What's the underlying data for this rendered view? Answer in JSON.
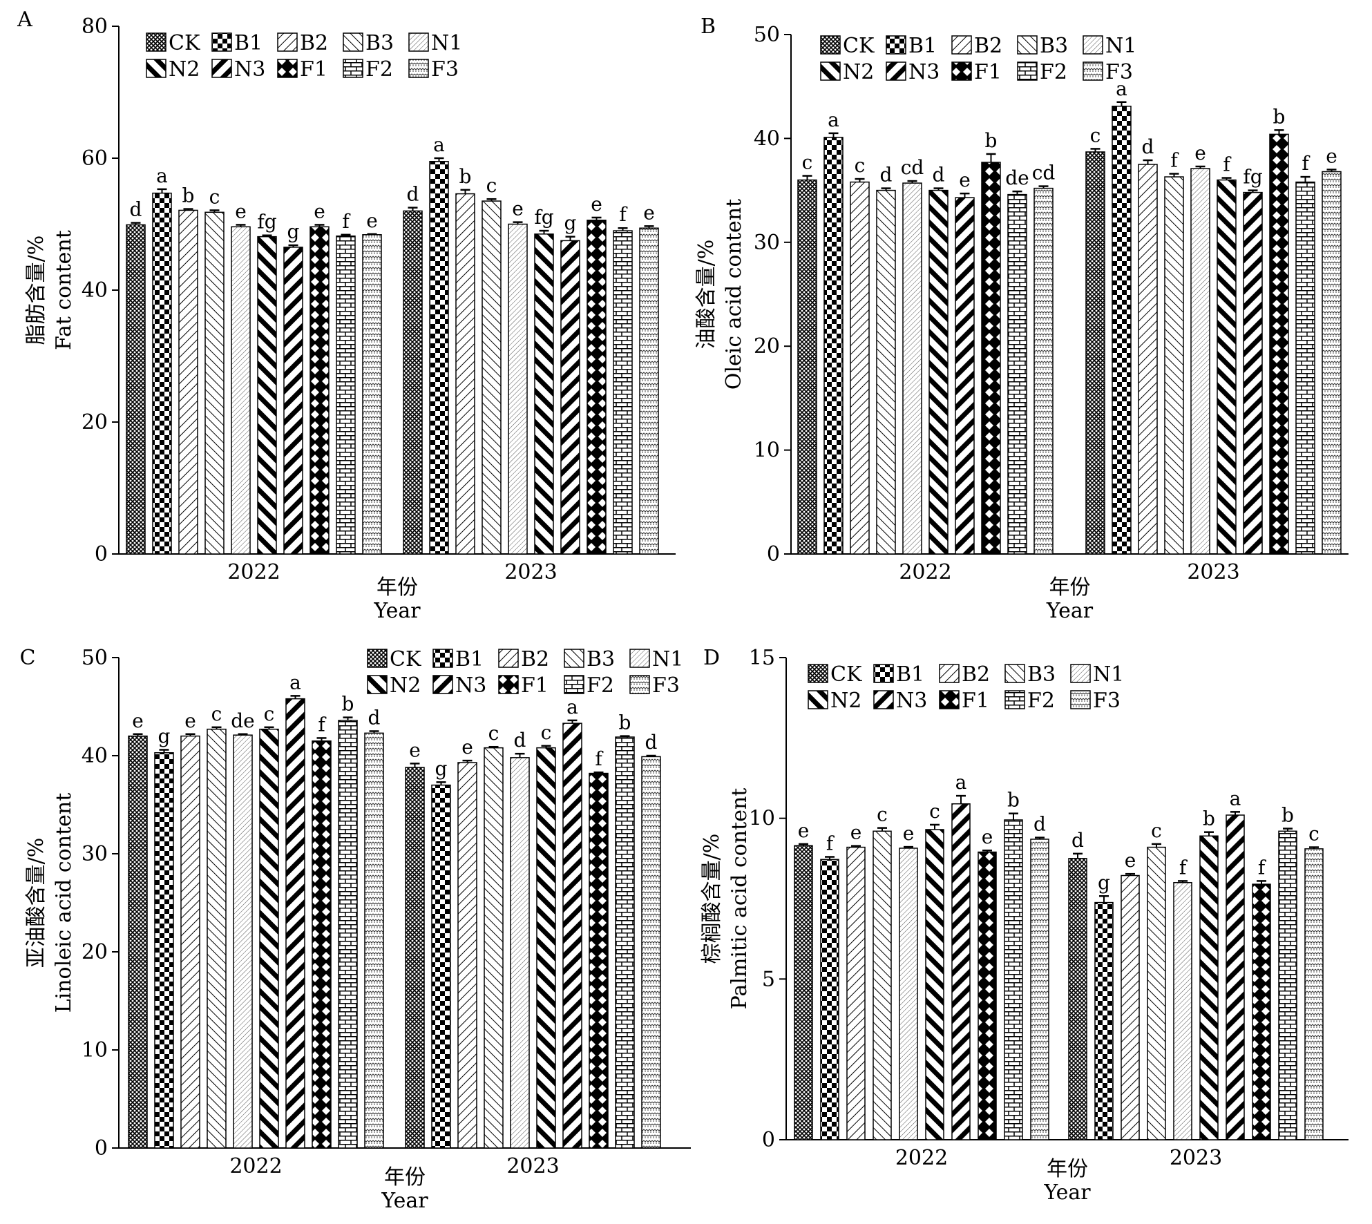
{
  "treatments": [
    "CK",
    "B1",
    "B2",
    "B3",
    "N1",
    "N2",
    "N3",
    "F1",
    "F2",
    "F3"
  ],
  "chart_data": [
    {
      "panel": "A",
      "type": "bar",
      "ylabel_cn": "脂肪含量/%",
      "ylabel_en": "Fat content",
      "xlabel_cn": "年份",
      "xlabel_en": "Year",
      "ylim": [
        0,
        80
      ],
      "yticks": [
        0,
        20,
        40,
        60,
        80
      ],
      "categories": [
        "2022",
        "2023"
      ],
      "series": [
        {
          "name": "CK",
          "values": [
            49.9,
            52.0
          ],
          "errors": [
            0.3,
            0.5
          ],
          "letters": [
            "d",
            "d"
          ]
        },
        {
          "name": "B1",
          "values": [
            54.7,
            59.5
          ],
          "errors": [
            0.6,
            0.5
          ],
          "letters": [
            "a",
            "a"
          ]
        },
        {
          "name": "B2",
          "values": [
            52.1,
            54.6
          ],
          "errors": [
            0.2,
            0.6
          ],
          "letters": [
            "b",
            "b"
          ]
        },
        {
          "name": "B3",
          "values": [
            51.8,
            53.5
          ],
          "errors": [
            0.3,
            0.3
          ],
          "letters": [
            "c",
            "c"
          ]
        },
        {
          "name": "N1",
          "values": [
            49.6,
            50.0
          ],
          "errors": [
            0.3,
            0.3
          ],
          "letters": [
            "e",
            "e"
          ]
        },
        {
          "name": "N2",
          "values": [
            48.1,
            48.5
          ],
          "errors": [
            0.2,
            0.5
          ],
          "letters": [
            "fg",
            "fg"
          ]
        },
        {
          "name": "N3",
          "values": [
            46.5,
            47.5
          ],
          "errors": [
            0.3,
            0.6
          ],
          "letters": [
            "g",
            "g"
          ]
        },
        {
          "name": "F1",
          "values": [
            49.6,
            50.6
          ],
          "errors": [
            0.3,
            0.4
          ],
          "letters": [
            "e",
            "e"
          ]
        },
        {
          "name": "F2",
          "values": [
            48.2,
            49.0
          ],
          "errors": [
            0.2,
            0.4
          ],
          "letters": [
            "f",
            "f"
          ]
        },
        {
          "name": "F3",
          "values": [
            48.4,
            49.4
          ],
          "errors": [
            0.1,
            0.3
          ],
          "letters": [
            "e",
            "e"
          ]
        }
      ]
    },
    {
      "panel": "B",
      "type": "bar",
      "ylabel_cn": "油酸含量/%",
      "ylabel_en": "Oleic acid content",
      "xlabel_cn": "年份",
      "xlabel_en": "Year",
      "ylim": [
        0,
        50
      ],
      "yticks": [
        0,
        10,
        20,
        30,
        40,
        50
      ],
      "categories": [
        "2022",
        "2023"
      ],
      "series": [
        {
          "name": "CK",
          "values": [
            36.0,
            38.7
          ],
          "errors": [
            0.4,
            0.3
          ],
          "letters": [
            "c",
            "c"
          ]
        },
        {
          "name": "B1",
          "values": [
            40.1,
            43.1
          ],
          "errors": [
            0.4,
            0.4
          ],
          "letters": [
            "a",
            "a"
          ]
        },
        {
          "name": "B2",
          "values": [
            35.8,
            37.5
          ],
          "errors": [
            0.3,
            0.4
          ],
          "letters": [
            "c",
            "d"
          ]
        },
        {
          "name": "B3",
          "values": [
            35.0,
            36.3
          ],
          "errors": [
            0.2,
            0.3
          ],
          "letters": [
            "d",
            "f"
          ]
        },
        {
          "name": "N1",
          "values": [
            35.7,
            37.1
          ],
          "errors": [
            0.2,
            0.2
          ],
          "letters": [
            "cd",
            "e"
          ]
        },
        {
          "name": "N2",
          "values": [
            35.0,
            36.0
          ],
          "errors": [
            0.2,
            0.2
          ],
          "letters": [
            "d",
            "f"
          ]
        },
        {
          "name": "N3",
          "values": [
            34.3,
            34.8
          ],
          "errors": [
            0.4,
            0.2
          ],
          "letters": [
            "e",
            "fg"
          ]
        },
        {
          "name": "F1",
          "values": [
            37.7,
            40.4
          ],
          "errors": [
            0.8,
            0.4
          ],
          "letters": [
            "b",
            "b"
          ]
        },
        {
          "name": "F2",
          "values": [
            34.6,
            35.8
          ],
          "errors": [
            0.3,
            0.5
          ],
          "letters": [
            "de",
            "f"
          ]
        },
        {
          "name": "F3",
          "values": [
            35.2,
            36.8
          ],
          "errors": [
            0.2,
            0.2
          ],
          "letters": [
            "cd",
            "e"
          ]
        }
      ]
    },
    {
      "panel": "C",
      "type": "bar",
      "ylabel_cn": "亚油酸含量/%",
      "ylabel_en": "Linoleic acid content",
      "xlabel_cn": "年份",
      "xlabel_en": "Year",
      "ylim": [
        0,
        50
      ],
      "yticks": [
        0,
        10,
        20,
        30,
        40,
        50
      ],
      "categories": [
        "2022",
        "2023"
      ],
      "series": [
        {
          "name": "CK",
          "values": [
            42.0,
            38.8
          ],
          "errors": [
            0.2,
            0.4
          ],
          "letters": [
            "e",
            "e"
          ]
        },
        {
          "name": "B1",
          "values": [
            40.3,
            37.0
          ],
          "errors": [
            0.3,
            0.3
          ],
          "letters": [
            "g",
            "g"
          ]
        },
        {
          "name": "B2",
          "values": [
            42.0,
            39.3
          ],
          "errors": [
            0.2,
            0.2
          ],
          "letters": [
            "e",
            "e"
          ]
        },
        {
          "name": "B3",
          "values": [
            42.7,
            40.8
          ],
          "errors": [
            0.2,
            0.1
          ],
          "letters": [
            "c",
            "c"
          ]
        },
        {
          "name": "N1",
          "values": [
            42.1,
            39.8
          ],
          "errors": [
            0.1,
            0.4
          ],
          "letters": [
            "de",
            "d"
          ]
        },
        {
          "name": "N2",
          "values": [
            42.7,
            40.8
          ],
          "errors": [
            0.2,
            0.2
          ],
          "letters": [
            "c",
            "c"
          ]
        },
        {
          "name": "N3",
          "values": [
            45.8,
            43.3
          ],
          "errors": [
            0.3,
            0.3
          ],
          "letters": [
            "a",
            "a"
          ]
        },
        {
          "name": "F1",
          "values": [
            41.5,
            38.2
          ],
          "errors": [
            0.3,
            0.1
          ],
          "letters": [
            "f",
            "f"
          ]
        },
        {
          "name": "F2",
          "values": [
            43.6,
            41.9
          ],
          "errors": [
            0.3,
            0.1
          ],
          "letters": [
            "b",
            "b"
          ]
        },
        {
          "name": "F3",
          "values": [
            42.3,
            39.9
          ],
          "errors": [
            0.2,
            0.1
          ],
          "letters": [
            "d",
            "d"
          ]
        }
      ]
    },
    {
      "panel": "D",
      "type": "bar",
      "ylabel_cn": "棕榈酸含量/%",
      "ylabel_en": "Palmitic acid content",
      "xlabel_cn": "年份",
      "xlabel_en": "Year",
      "ylim": [
        0,
        15
      ],
      "yticks": [
        0,
        5,
        10,
        15
      ],
      "categories": [
        "2022",
        "2023"
      ],
      "series": [
        {
          "name": "CK",
          "values": [
            9.15,
            8.75
          ],
          "errors": [
            0.05,
            0.15
          ],
          "letters": [
            "e",
            "d"
          ]
        },
        {
          "name": "B1",
          "values": [
            8.72,
            7.38
          ],
          "errors": [
            0.08,
            0.2
          ],
          "letters": [
            "f",
            "g"
          ]
        },
        {
          "name": "B2",
          "values": [
            9.1,
            8.22
          ],
          "errors": [
            0.04,
            0.05
          ],
          "letters": [
            "e",
            "e"
          ]
        },
        {
          "name": "B3",
          "values": [
            9.6,
            9.1
          ],
          "errors": [
            0.1,
            0.1
          ],
          "letters": [
            "c",
            "c"
          ]
        },
        {
          "name": "N1",
          "values": [
            9.07,
            8.0
          ],
          "errors": [
            0.04,
            0.05
          ],
          "letters": [
            "e",
            "f"
          ]
        },
        {
          "name": "N2",
          "values": [
            9.65,
            9.45
          ],
          "errors": [
            0.15,
            0.12
          ],
          "letters": [
            "c",
            "b"
          ]
        },
        {
          "name": "N3",
          "values": [
            10.45,
            10.1
          ],
          "errors": [
            0.25,
            0.1
          ],
          "letters": [
            "a",
            "a"
          ]
        },
        {
          "name": "F1",
          "values": [
            8.95,
            7.95
          ],
          "errors": [
            0.05,
            0.1
          ],
          "letters": [
            "e",
            "f"
          ]
        },
        {
          "name": "F2",
          "values": [
            9.95,
            9.6
          ],
          "errors": [
            0.2,
            0.08
          ],
          "letters": [
            "b",
            "b"
          ]
        },
        {
          "name": "F3",
          "values": [
            9.35,
            9.05
          ],
          "errors": [
            0.05,
            0.05
          ],
          "letters": [
            "d",
            "c"
          ]
        }
      ]
    }
  ]
}
